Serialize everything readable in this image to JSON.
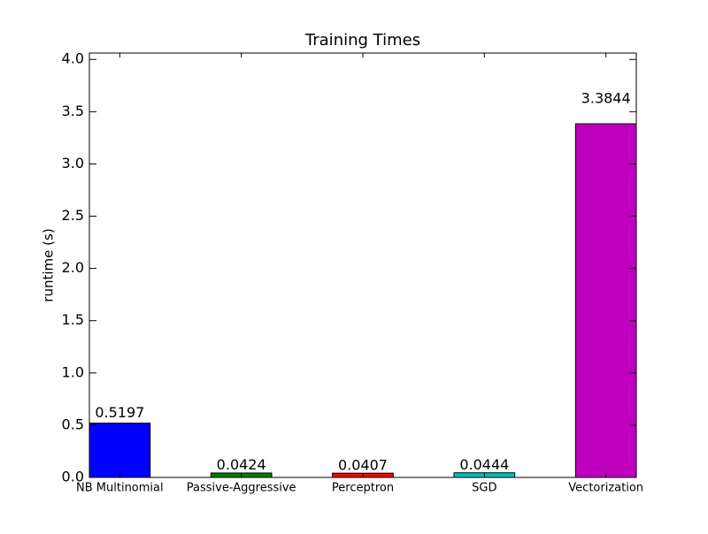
{
  "chart_data": {
    "type": "bar",
    "title": "Training Times",
    "ylabel": "runtime (s)",
    "categories": [
      "NB Multinomial",
      "Passive-Aggressive",
      "Perceptron",
      "SGD",
      "Vectorization"
    ],
    "values": [
      0.5197,
      0.0424,
      0.0407,
      0.0444,
      3.3844
    ],
    "colors": [
      "#0000ff",
      "#008000",
      "#ff0000",
      "#00bfbf",
      "#bf00bf"
    ],
    "ylim": [
      0,
      4.0613
    ],
    "yticks": [
      {
        "value": 0,
        "label": "0.0"
      },
      {
        "value": 0.5,
        "label": "0.5"
      },
      {
        "value": 1,
        "label": "1.0"
      },
      {
        "value": 1.5,
        "label": "1.5"
      },
      {
        "value": 2,
        "label": "2.0"
      },
      {
        "value": 2.5,
        "label": "2.5"
      },
      {
        "value": 3,
        "label": "3.0"
      },
      {
        "value": 3.5,
        "label": "3.5"
      },
      {
        "value": 4,
        "label": "4.0"
      }
    ],
    "grid": false
  }
}
